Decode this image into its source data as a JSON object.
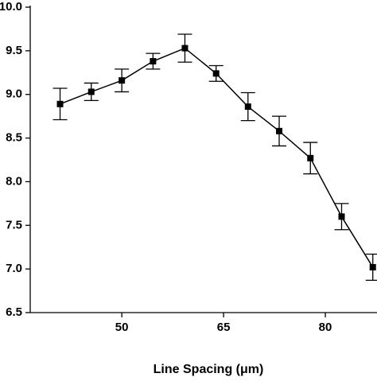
{
  "chart_data": {
    "type": "line",
    "x_label": "Line Spacing (μm)",
    "x": [
      40.9,
      45.5,
      50,
      54.6,
      59.3,
      63.9,
      68.6,
      73.2,
      77.8,
      82.4,
      87
    ],
    "series": [
      {
        "color": "#000000",
        "values": [
          8.89,
          9.03,
          9.16,
          9.38,
          9.53,
          9.24,
          8.86,
          8.58,
          8.27,
          7.6,
          7.02
        ],
        "errors": [
          0.18,
          0.1,
          0.13,
          0.09,
          0.16,
          0.09,
          0.16,
          0.17,
          0.18,
          0.15,
          0.15
        ]
      }
    ],
    "xlim": [
      36.5,
      87.5
    ],
    "xticks": [
      50,
      65,
      80
    ],
    "ylim": [
      6.5,
      10
    ],
    "yticks": [
      {
        "value": 10,
        "label": "10.0"
      },
      9.5,
      {
        "value": 9,
        "label": "9.0"
      },
      8.5,
      {
        "value": 8,
        "label": "8.0"
      },
      7.5,
      {
        "value": 7,
        "label": "7.0"
      },
      6.5
    ]
  }
}
